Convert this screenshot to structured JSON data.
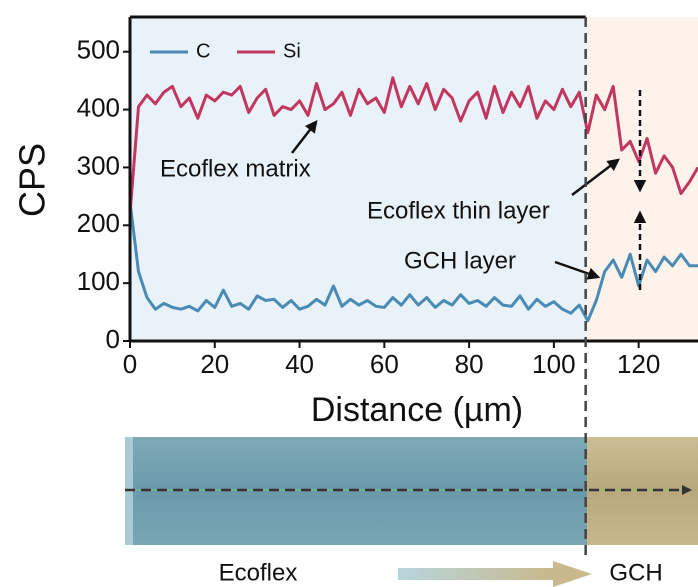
{
  "chart_data": {
    "type": "line",
    "xlabel": "Distance (µm)",
    "ylabel": "CPS",
    "x": [
      0,
      2,
      4,
      6,
      8,
      10,
      12,
      14,
      16,
      18,
      20,
      22,
      24,
      26,
      28,
      30,
      32,
      34,
      36,
      38,
      40,
      42,
      44,
      46,
      48,
      50,
      52,
      54,
      56,
      58,
      60,
      62,
      64,
      66,
      68,
      70,
      72,
      74,
      76,
      78,
      80,
      82,
      84,
      86,
      88,
      90,
      92,
      94,
      96,
      98,
      100,
      102,
      104,
      106,
      108,
      110,
      112,
      114,
      116,
      118,
      120,
      122,
      124,
      126,
      128,
      130,
      132,
      134
    ],
    "series": [
      {
        "name": "C",
        "color": "#4a8bb5",
        "values": [
          240,
          120,
          75,
          55,
          65,
          58,
          55,
          60,
          52,
          70,
          58,
          88,
          60,
          65,
          55,
          78,
          70,
          72,
          58,
          70,
          55,
          60,
          72,
          62,
          95,
          60,
          72,
          62,
          70,
          60,
          58,
          75,
          62,
          80,
          62,
          75,
          58,
          70,
          62,
          80,
          65,
          70,
          60,
          75,
          62,
          60,
          78,
          55,
          72,
          60,
          68,
          55,
          48,
          62,
          35,
          70,
          120,
          140,
          110,
          150,
          95,
          140,
          120,
          145,
          130,
          150,
          130,
          130
        ]
      },
      {
        "name": "Si",
        "color": "#c2375f",
        "values": [
          220,
          405,
          425,
          410,
          430,
          440,
          405,
          420,
          385,
          425,
          415,
          430,
          425,
          440,
          395,
          420,
          435,
          390,
          405,
          400,
          415,
          390,
          445,
          400,
          410,
          430,
          390,
          435,
          410,
          420,
          395,
          455,
          405,
          440,
          410,
          445,
          400,
          435,
          420,
          380,
          415,
          430,
          385,
          440,
          395,
          430,
          405,
          440,
          385,
          415,
          400,
          435,
          405,
          430,
          360,
          425,
          400,
          440,
          330,
          345,
          310,
          350,
          290,
          320,
          300,
          255,
          275,
          300
        ]
      }
    ],
    "xlim": [
      0,
      134
    ],
    "ylim": [
      0,
      560
    ],
    "xticks": [
      0,
      20,
      40,
      60,
      80,
      100,
      120
    ],
    "yticks": [
      0,
      100,
      200,
      300,
      400,
      500
    ],
    "boundary_x": 107.5,
    "annotations": [
      "Ecoflex matrix",
      "Ecoflex thin layer",
      "GCH layer"
    ],
    "strip_labels": [
      "Ecoflex",
      "GCH"
    ]
  }
}
